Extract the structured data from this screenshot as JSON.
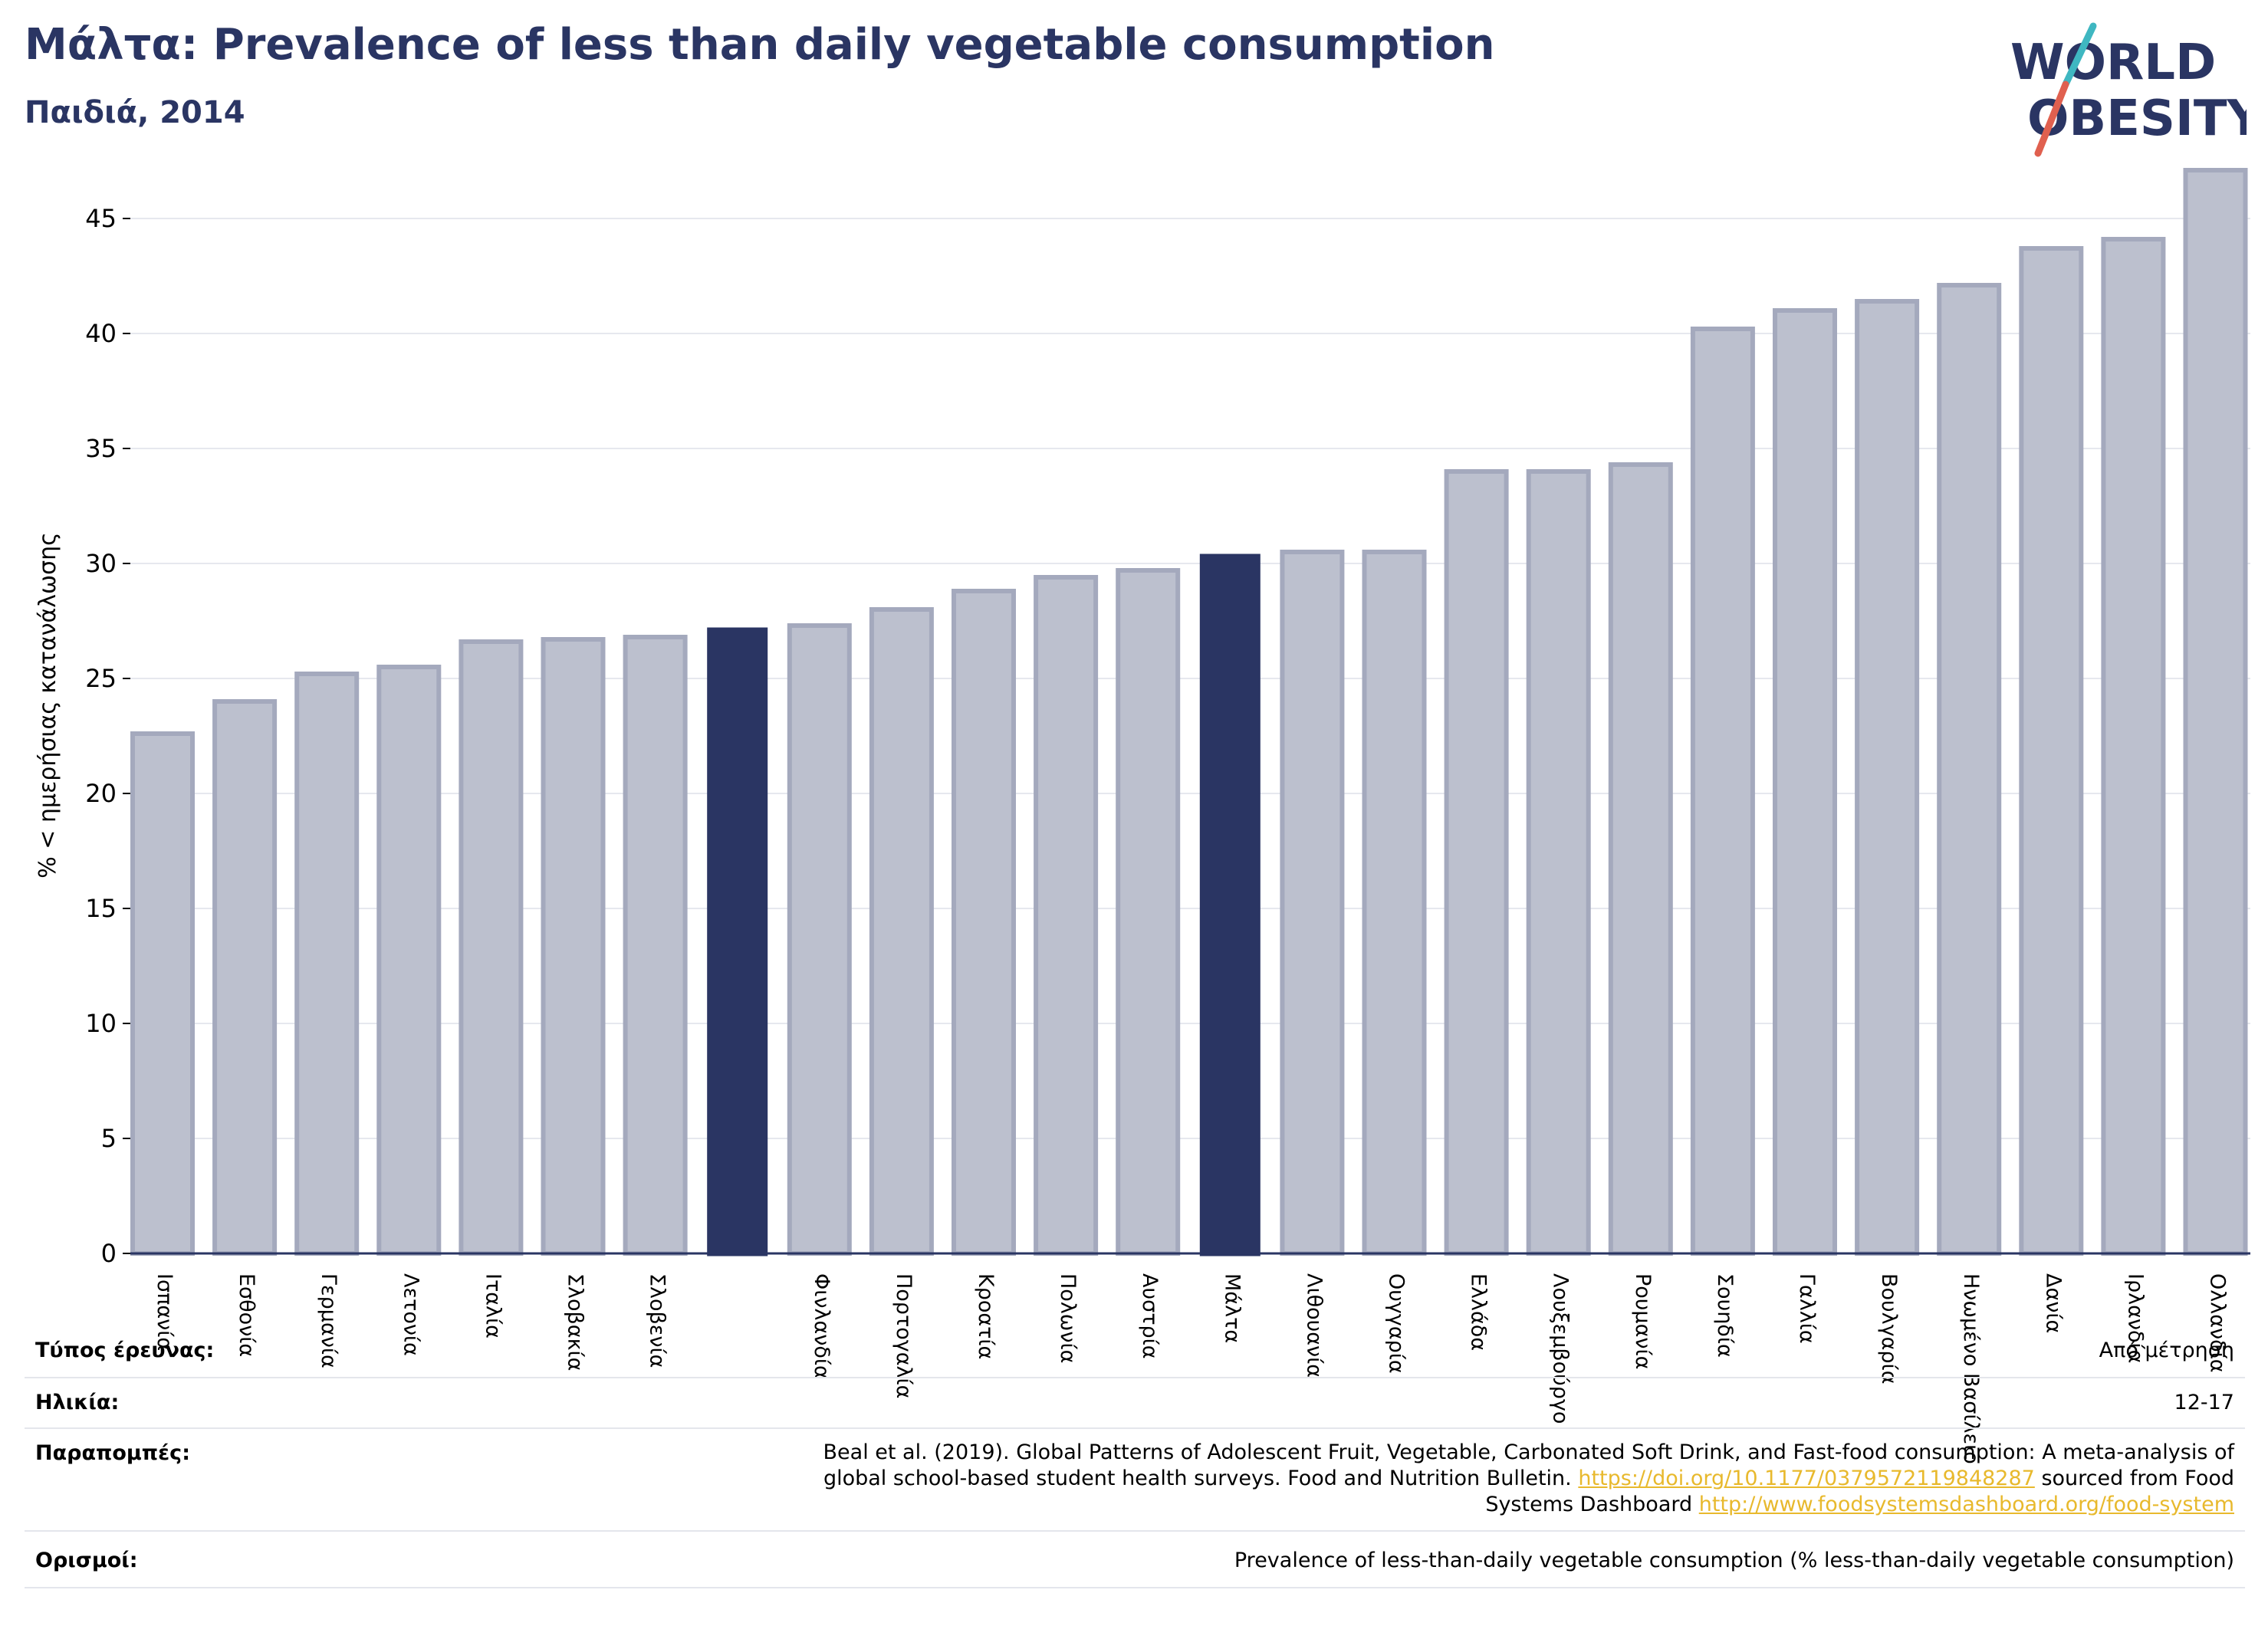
{
  "header": {
    "title": "Μάλτα: Prevalence of less than daily vegetable consumption",
    "subtitle": "Παιδιά, 2014"
  },
  "logo": {
    "line1": "WORLD",
    "line2": "OBESITY"
  },
  "colors": {
    "bar_default": "#bcc0ce",
    "bar_default_border": "#a4a9bd",
    "bar_highlight": "#2a3563",
    "grid": "#e6e8ee",
    "axis": "#2a3563",
    "link": "#e8b92d",
    "logo_teal": "#3fb7c1",
    "logo_red": "#e0604f"
  },
  "chart_data": {
    "type": "bar",
    "ylabel": "% < ημερήσιας κατανάλωσης",
    "ylim": [
      0,
      47
    ],
    "yticks": [
      0,
      5,
      10,
      15,
      20,
      25,
      30,
      35,
      40,
      45
    ],
    "grid": true,
    "categories": [
      "Ισπανία",
      "Εσθονία",
      "Γερμανία",
      "Λετονία",
      "Ιταλία",
      "Σλοβακία",
      "Σλοβενία",
      "",
      "Φινλανδία",
      "Πορτογαλία",
      "Κροατία",
      "Πολωνία",
      "Αυστρία",
      "Μάλτα",
      "Λιθουανία",
      "Ουγγαρία",
      "Ελλάδα",
      "Λουξεμβούργο",
      "Ρουμανία",
      "Σουηδία",
      "Γαλλία",
      "Βουλγαρία",
      "Ηνωμένο Βασίλειο",
      "Δανία",
      "Ιρλανδία",
      "Ολλανδία"
    ],
    "values": [
      22.6,
      24.0,
      25.2,
      25.5,
      26.6,
      26.7,
      26.8,
      27.2,
      27.3,
      28.0,
      28.8,
      29.4,
      29.7,
      30.4,
      30.5,
      30.5,
      34.0,
      34.0,
      34.3,
      40.2,
      41.0,
      41.4,
      42.1,
      43.7,
      44.1,
      47.1
    ],
    "highlight": [
      false,
      false,
      false,
      false,
      false,
      false,
      false,
      true,
      false,
      false,
      false,
      false,
      false,
      true,
      false,
      false,
      false,
      false,
      false,
      false,
      false,
      false,
      false,
      false,
      false,
      false
    ]
  },
  "info": {
    "survey_type_label": "Τύπος έρευνας:",
    "survey_type_value": "Από μέτρηση",
    "age_label": "Ηλικία:",
    "age_value": "12-17",
    "refs_label": "Παραπομπές:",
    "refs_line1": "Beal et al. (2019). Global Patterns of Adolescent Fruit, Vegetable, Carbonated Soft Drink, and Fast-food consumption: A meta-analysis of",
    "refs_line2_text": "global school-based student health surveys. Food and Nutrition Bulletin.",
    "refs_line2_link": "https://doi.org/10.1177/0379572119848287",
    "refs_line2_tail": "sourced from Food",
    "refs_line3_text": "Systems Dashboard",
    "refs_line3_link": "http://www.foodsystemsdashboard.org/food-system",
    "definitions_label": "Ορισμοί:",
    "definitions_value": "Prevalence of less-than-daily vegetable consumption (% less-than-daily vegetable consumption)"
  }
}
